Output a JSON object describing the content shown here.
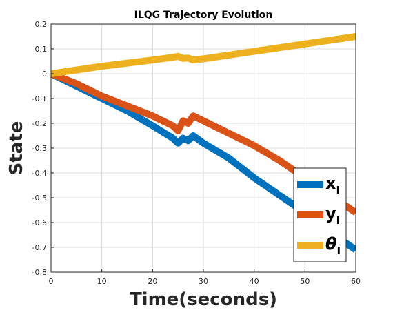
{
  "chart_data": {
    "type": "line",
    "title": "ILQG Trajectory Evolution",
    "xlabel": "Time(seconds)",
    "ylabel": "State",
    "xlim": [
      0,
      60
    ],
    "ylim": [
      -0.8,
      0.2
    ],
    "xticks": [
      "0",
      "10",
      "20",
      "30",
      "40",
      "50",
      "60"
    ],
    "yticks": [
      "-0.8",
      "-0.7",
      "-0.6",
      "-0.5",
      "-0.4",
      "-0.3",
      "-0.2",
      "-0.1",
      "0",
      "0.1",
      "0.2"
    ],
    "grid": true,
    "legend_position": "bottom-right",
    "series": [
      {
        "name": "x",
        "name_sub": "I",
        "color": "#0072BD",
        "x": [
          0,
          5,
          10,
          15,
          20,
          24,
          25,
          26,
          27,
          28,
          30,
          35,
          40,
          45,
          50,
          55,
          60
        ],
        "y": [
          0,
          -0.05,
          -0.1,
          -0.15,
          -0.21,
          -0.26,
          -0.28,
          -0.26,
          -0.27,
          -0.25,
          -0.28,
          -0.34,
          -0.42,
          -0.49,
          -0.56,
          -0.64,
          -0.71
        ]
      },
      {
        "name": "y",
        "name_sub": "I",
        "color": "#D95319",
        "x": [
          0,
          5,
          10,
          15,
          20,
          24,
          25,
          26,
          27,
          28,
          30,
          35,
          40,
          45,
          50,
          55,
          60
        ],
        "y": [
          0,
          -0.04,
          -0.09,
          -0.13,
          -0.17,
          -0.21,
          -0.23,
          -0.19,
          -0.2,
          -0.17,
          -0.19,
          -0.24,
          -0.29,
          -0.35,
          -0.42,
          -0.49,
          -0.56
        ]
      },
      {
        "name": "θ",
        "name_sub": "I",
        "color": "#EDB120",
        "x": [
          0,
          10,
          20,
          24,
          25,
          26,
          27,
          28,
          30,
          40,
          50,
          60
        ],
        "y": [
          0,
          0.03,
          0.055,
          0.066,
          0.07,
          0.062,
          0.063,
          0.055,
          0.06,
          0.09,
          0.12,
          0.15
        ]
      }
    ]
  }
}
